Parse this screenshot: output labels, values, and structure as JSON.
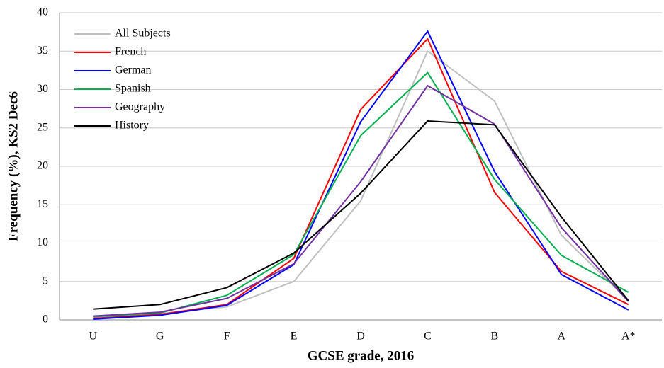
{
  "chart_data": {
    "type": "line",
    "x_label": "GCSE grade, 2016",
    "y_label": "Frequency  (%), KS2 Dec6",
    "categories": [
      "U",
      "G",
      "F",
      "E",
      "D",
      "C",
      "B",
      "A",
      "A*"
    ],
    "series": [
      {
        "name": "All Subjects",
        "color": "#bfbfbf",
        "values": [
          0.5,
          0.8,
          1.7,
          5.0,
          15.5,
          35.0,
          28.5,
          11.0,
          2.5
        ]
      },
      {
        "name": "French",
        "color": "#ff0000",
        "values": [
          0.2,
          0.7,
          2.0,
          8.0,
          27.4,
          36.6,
          16.6,
          6.3,
          2.0
        ]
      },
      {
        "name": "German",
        "color": "#0000ff",
        "values": [
          0.1,
          0.6,
          1.9,
          7.2,
          25.8,
          37.6,
          19.3,
          5.9,
          1.3
        ]
      },
      {
        "name": "Spanish",
        "color": "#00b050",
        "values": [
          0.4,
          0.9,
          3.2,
          8.5,
          24.0,
          32.2,
          18.3,
          8.4,
          3.6
        ]
      },
      {
        "name": "Geography",
        "color": "#7030a0",
        "values": [
          0.5,
          1.0,
          2.8,
          7.3,
          18.0,
          30.5,
          25.5,
          12.0,
          2.4
        ]
      },
      {
        "name": "History",
        "color": "#000000",
        "values": [
          1.4,
          2.0,
          4.2,
          8.7,
          16.5,
          25.9,
          25.4,
          13.4,
          2.5
        ]
      }
    ],
    "ylim": [
      0,
      40
    ],
    "yticks": [
      0,
      5,
      10,
      15,
      20,
      25,
      30,
      35,
      40
    ],
    "grid": true,
    "legend": "upper-left"
  }
}
